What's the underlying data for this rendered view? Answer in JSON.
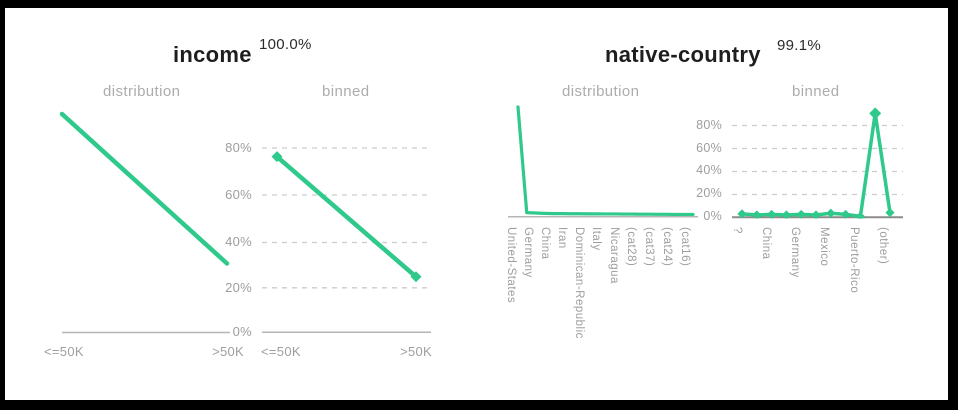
{
  "colors": {
    "accent_green": "#2fc98c",
    "grid_dash": "#cccccc",
    "axis_light": "#b5b5b5",
    "axis_dark": "#8c8c8c",
    "label_gray": "#9e9e9e",
    "subtitle_gray": "#acacac",
    "title_dark": "#1e1e1e",
    "frame_black": "#000000",
    "background": "#ffffff"
  },
  "features": [
    {
      "name": "income",
      "coverage": "100.0%",
      "pane_labels": [
        "distribution",
        "binned"
      ]
    },
    {
      "name": "native-country",
      "coverage": "99.1%",
      "pane_labels": [
        "distribution",
        "binned"
      ]
    }
  ],
  "chart_data": [
    {
      "id": "income-distribution",
      "feature": "income",
      "pane": "distribution",
      "type": "line",
      "x_tick_labels": [
        "<=50K",
        ">50K"
      ],
      "values_pct": [
        76,
        24
      ],
      "markers": false,
      "y_axis": "unlabeled, line scaled so max value touches chart top",
      "grid": "none"
    },
    {
      "id": "income-binned",
      "feature": "income",
      "pane": "binned",
      "type": "line",
      "x_tick_labels": [
        "<=50K",
        ">50K"
      ],
      "values_pct": [
        76,
        24
      ],
      "y_ticks": [
        "80%",
        "60%",
        "40%",
        "20%",
        "0%"
      ],
      "ylim": [
        0,
        100
      ],
      "markers": true,
      "grid": "dashed horizontal at 20/40/60/80%"
    },
    {
      "id": "native-country-distribution",
      "feature": "native-country",
      "pane": "distribution",
      "type": "line",
      "x_tick_labels": [
        "United-States",
        "Germany",
        "China",
        "Iran",
        "Dominican-Republic",
        "Italy",
        "Nicaragua",
        "(cat28)",
        "(cat37)",
        "(cat24)",
        "(cat16)"
      ],
      "tick_every": 2,
      "values_pct": [
        90,
        1.8,
        1.5,
        1.2,
        1.0,
        1.0,
        0.9,
        0.9,
        0.8,
        0.8,
        0.7,
        0.7,
        0.6,
        0.6,
        0.5,
        0.5,
        0.4,
        0.4,
        0.3,
        0.3,
        0.3
      ],
      "markers": false,
      "y_axis": "unlabeled, line scaled so max value touches chart top",
      "grid": "none"
    },
    {
      "id": "native-country-binned",
      "feature": "native-country",
      "pane": "binned",
      "type": "line",
      "x_tick_labels": [
        "?",
        "China",
        "Germany",
        "Mexico",
        "Puerto-Rico",
        "(other)"
      ],
      "tick_every": 2,
      "values_pct": [
        3,
        2,
        2.5,
        2,
        2.5,
        2,
        3.5,
        2.5,
        0.8,
        90,
        4
      ],
      "y_ticks": [
        "80%",
        "60%",
        "40%",
        "20%",
        "0%"
      ],
      "ylim": [
        0,
        100
      ],
      "markers": true,
      "grid": "dashed horizontal at 20/40/60/80%"
    }
  ]
}
